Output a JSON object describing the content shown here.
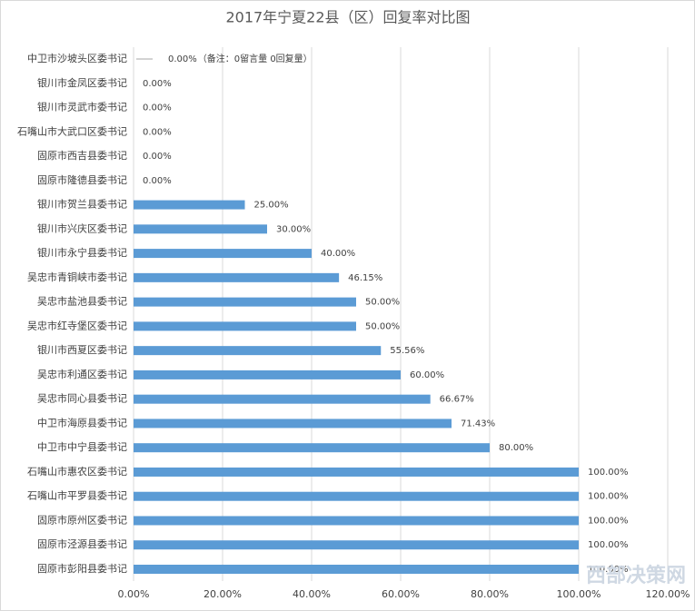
{
  "chart_data": {
    "type": "hbar",
    "title": "2017年宁夏22县（区）回复率对比图",
    "categories": [
      "中卫市沙坡头区委书记",
      "银川市金凤区委书记",
      "银川市灵武市委书记",
      "石嘴山市大武口区委书记",
      "固原市西吉县委书记",
      "固原市隆德县委书记",
      "银川市贺兰县委书记",
      "银川市兴庆区委书记",
      "银川市永宁县委书记",
      "吴忠市青铜峡市委书记",
      "吴忠市盐池县委书记",
      "吴忠市红寺堡区委书记",
      "银川市西夏区委书记",
      "吴忠市利通区委书记",
      "吴忠市同心县委书记",
      "中卫市海原县委书记",
      "中卫市中宁县委书记",
      "石嘴山市惠农区委书记",
      "石嘴山市平罗县委书记",
      "固原市原州区委书记",
      "固原市泾源县委书记",
      "固原市彭阳县委书记"
    ],
    "values": [
      0,
      0,
      0,
      0,
      0,
      0,
      25,
      30,
      40,
      46.15,
      50,
      50,
      55.56,
      60,
      66.67,
      71.43,
      80,
      100,
      100,
      100,
      100,
      100
    ],
    "value_labels": [
      "0.00%",
      "0.00%",
      "0.00%",
      "0.00%",
      "0.00%",
      "0.00%",
      "25.00%",
      "30.00%",
      "40.00%",
      "46.15%",
      "50.00%",
      "50.00%",
      "55.56%",
      "60.00%",
      "66.67%",
      "71.43%",
      "80.00%",
      "100.00%",
      "100.00%",
      "100.00%",
      "100.00%",
      "100.00%"
    ],
    "annotation": "（备注：0留言量 0回复量）",
    "color": "#5b9bd5",
    "xlim": [
      0,
      120
    ],
    "xticks": [
      {
        "value": 0,
        "label": "0.00%"
      },
      {
        "value": 20,
        "label": "20.00%"
      },
      {
        "value": 40,
        "label": "40.00%"
      },
      {
        "value": 60,
        "label": "60.00%"
      },
      {
        "value": 80,
        "label": "80.00%"
      },
      {
        "value": 100,
        "label": "100.00%"
      },
      {
        "value": 120,
        "label": "120.00%"
      }
    ],
    "grid": true,
    "watermark": "西部决策网"
  }
}
